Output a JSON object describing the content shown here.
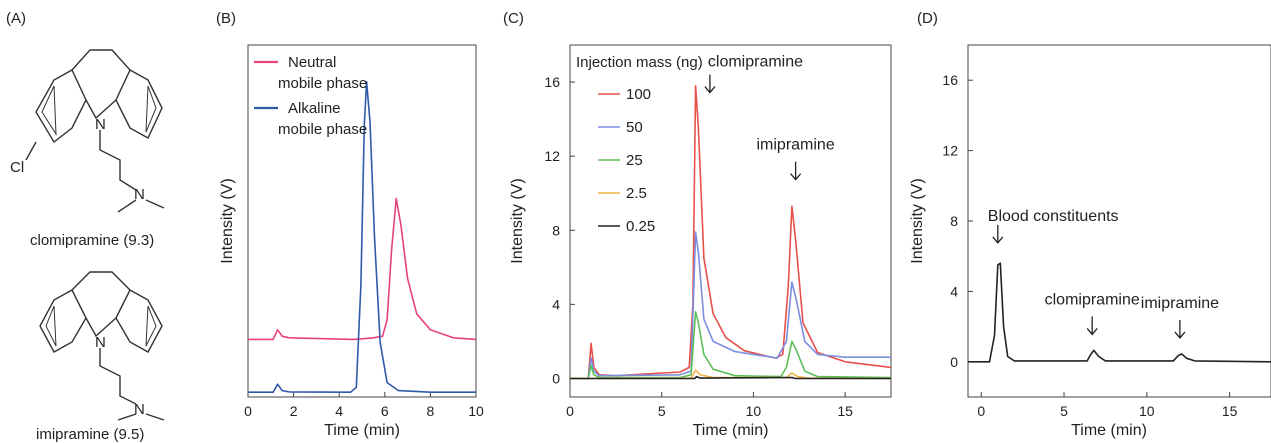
{
  "panel_labels": [
    "(A)",
    "(B)",
    "(C)",
    "(D)"
  ],
  "molecules": {
    "chlorine_atom": "Cl",
    "nitrogen_atom": "N",
    "names": [
      "clomipramine (9.3)",
      "imipramine (9.5)"
    ]
  },
  "colors": {
    "pink": "#e8417f",
    "blue": "#2f5aa8",
    "red": "#e8504a",
    "lightblue": "#7b8fe0",
    "green": "#5cbf5a",
    "orange": "#f4b648",
    "black": "#222222"
  },
  "chart_data": [
    {
      "type": "line",
      "panel": "(B)",
      "xlabel": "Time (min)",
      "ylabel": "Intensity (V)",
      "xlim": [
        0,
        10
      ],
      "xticks": [
        0,
        2,
        4,
        6,
        8,
        10
      ],
      "ylim": [
        0,
        11
      ],
      "show_yticks": false,
      "legend_position": "top-left",
      "series": [
        {
          "name": "Neutral\nmobile phase",
          "color": "#e8417f",
          "points": [
            [
              0,
              1.8
            ],
            [
              1.1,
              1.8
            ],
            [
              1.3,
              2.1
            ],
            [
              1.5,
              1.9
            ],
            [
              1.8,
              1.85
            ],
            [
              4.6,
              1.8
            ],
            [
              5.0,
              1.82
            ],
            [
              5.5,
              1.85
            ],
            [
              5.9,
              1.9
            ],
            [
              6.1,
              2.4
            ],
            [
              6.3,
              4.6
            ],
            [
              6.5,
              6.2
            ],
            [
              6.7,
              5.4
            ],
            [
              7.0,
              3.7
            ],
            [
              7.4,
              2.6
            ],
            [
              8.0,
              2.1
            ],
            [
              9.0,
              1.85
            ],
            [
              10,
              1.8
            ]
          ]
        },
        {
          "name": "Alkaline\nmobile phase",
          "color": "#2f5aa8",
          "points": [
            [
              0,
              0.15
            ],
            [
              1.1,
              0.15
            ],
            [
              1.3,
              0.4
            ],
            [
              1.5,
              0.2
            ],
            [
              1.8,
              0.16
            ],
            [
              4.5,
              0.15
            ],
            [
              4.75,
              0.3
            ],
            [
              4.95,
              3.5
            ],
            [
              5.1,
              8.5
            ],
            [
              5.2,
              9.85
            ],
            [
              5.35,
              8.6
            ],
            [
              5.55,
              5.0
            ],
            [
              5.8,
              1.7
            ],
            [
              6.1,
              0.45
            ],
            [
              6.6,
              0.2
            ],
            [
              8,
              0.15
            ],
            [
              10,
              0.15
            ]
          ]
        }
      ]
    },
    {
      "type": "line",
      "panel": "(C)",
      "xlabel": "Time (min)",
      "ylabel": "Intensity (V)",
      "xlim": [
        0,
        17.5
      ],
      "xticks": [
        0,
        5,
        10,
        15
      ],
      "ylim": [
        -1,
        18
      ],
      "yticks": [
        0,
        4,
        8,
        12,
        16
      ],
      "legend_title": "Injection mass (ng)",
      "legend_position": "top-left",
      "annotations": [
        {
          "text": "clomipramine",
          "x": 7.3,
          "y": 15.0
        },
        {
          "text": "imipramine",
          "x": 12.3,
          "y": 10.3
        }
      ],
      "series": [
        {
          "name": "100",
          "color": "#e8504a",
          "points": [
            [
              0,
              0
            ],
            [
              1.0,
              0
            ],
            [
              1.15,
              1.9
            ],
            [
              1.3,
              0.6
            ],
            [
              1.6,
              0.2
            ],
            [
              2.5,
              0.15
            ],
            [
              6.0,
              0.35
            ],
            [
              6.5,
              0.6
            ],
            [
              6.7,
              4.0
            ],
            [
              6.85,
              15.8
            ],
            [
              7.0,
              13.5
            ],
            [
              7.3,
              6.5
            ],
            [
              7.8,
              3.5
            ],
            [
              8.5,
              2.2
            ],
            [
              9.5,
              1.5
            ],
            [
              11.2,
              1.1
            ],
            [
              11.6,
              1.3
            ],
            [
              11.9,
              5.0
            ],
            [
              12.1,
              9.3
            ],
            [
              12.3,
              7.5
            ],
            [
              12.7,
              3.0
            ],
            [
              13.5,
              1.4
            ],
            [
              15,
              0.9
            ],
            [
              17.5,
              0.6
            ]
          ]
        },
        {
          "name": "50",
          "color": "#7b8fe0",
          "points": [
            [
              0,
              0
            ],
            [
              1.0,
              0
            ],
            [
              1.15,
              1.1
            ],
            [
              1.3,
              0.4
            ],
            [
              1.6,
              0.15
            ],
            [
              6.0,
              0.2
            ],
            [
              6.6,
              0.4
            ],
            [
              6.85,
              7.9
            ],
            [
              7.0,
              6.8
            ],
            [
              7.3,
              3.2
            ],
            [
              7.8,
              2.0
            ],
            [
              9,
              1.45
            ],
            [
              11.3,
              1.1
            ],
            [
              11.8,
              2.0
            ],
            [
              12.1,
              5.2
            ],
            [
              12.35,
              4.2
            ],
            [
              12.8,
              2.0
            ],
            [
              13.5,
              1.3
            ],
            [
              15,
              1.15
            ],
            [
              17.5,
              1.15
            ]
          ]
        },
        {
          "name": "25",
          "color": "#5cbf5a",
          "points": [
            [
              0,
              0
            ],
            [
              1.0,
              0
            ],
            [
              1.15,
              0.7
            ],
            [
              1.3,
              0.2
            ],
            [
              1.6,
              0.05
            ],
            [
              6.0,
              0.05
            ],
            [
              6.6,
              0.2
            ],
            [
              6.85,
              3.6
            ],
            [
              7.0,
              3.0
            ],
            [
              7.3,
              1.3
            ],
            [
              7.8,
              0.5
            ],
            [
              9,
              0.15
            ],
            [
              11.5,
              0.1
            ],
            [
              11.8,
              0.6
            ],
            [
              12.1,
              2.0
            ],
            [
              12.35,
              1.5
            ],
            [
              12.8,
              0.4
            ],
            [
              13.5,
              0.1
            ],
            [
              17.5,
              0.05
            ]
          ]
        },
        {
          "name": "2.5",
          "color": "#f4b648",
          "points": [
            [
              0,
              0
            ],
            [
              6.6,
              0.02
            ],
            [
              6.85,
              0.45
            ],
            [
              7.1,
              0.2
            ],
            [
              7.8,
              0.05
            ],
            [
              11.8,
              0.05
            ],
            [
              12.1,
              0.3
            ],
            [
              12.4,
              0.1
            ],
            [
              13,
              0.02
            ],
            [
              17.5,
              0
            ]
          ]
        },
        {
          "name": "0.25",
          "color": "#222222",
          "points": [
            [
              0,
              0
            ],
            [
              6.8,
              0
            ],
            [
              6.9,
              0.1
            ],
            [
              7.1,
              0.02
            ],
            [
              12.1,
              0.05
            ],
            [
              12.3,
              0
            ],
            [
              17.5,
              0
            ]
          ]
        }
      ]
    },
    {
      "type": "line",
      "panel": "(D)",
      "xlabel": "Time (min)",
      "ylabel": "Intensity (V)",
      "xlim": [
        -0.8,
        17.5
      ],
      "xticks": [
        0,
        5,
        10,
        15
      ],
      "ylim": [
        -2,
        18
      ],
      "yticks": [
        0,
        4,
        8,
        12,
        16
      ],
      "annotations": [
        {
          "text": "Blood constituents",
          "x": 1.0,
          "y": 6.3
        },
        {
          "text": "clomipramine",
          "x": 6.7,
          "y": 1.1
        },
        {
          "text": "imipramine",
          "x": 12.0,
          "y": 0.9
        }
      ],
      "series": [
        {
          "name": "",
          "color": "#222222",
          "points": [
            [
              -0.8,
              0
            ],
            [
              0.5,
              0
            ],
            [
              0.8,
              1.5
            ],
            [
              1.0,
              5.5
            ],
            [
              1.15,
              5.6
            ],
            [
              1.35,
              2.0
            ],
            [
              1.6,
              0.3
            ],
            [
              2.0,
              0.05
            ],
            [
              6.4,
              0.05
            ],
            [
              6.6,
              0.4
            ],
            [
              6.8,
              0.65
            ],
            [
              7.1,
              0.3
            ],
            [
              7.5,
              0.05
            ],
            [
              11.6,
              0.05
            ],
            [
              11.9,
              0.35
            ],
            [
              12.1,
              0.45
            ],
            [
              12.4,
              0.2
            ],
            [
              12.9,
              0.05
            ],
            [
              17.5,
              0
            ]
          ]
        }
      ]
    }
  ]
}
